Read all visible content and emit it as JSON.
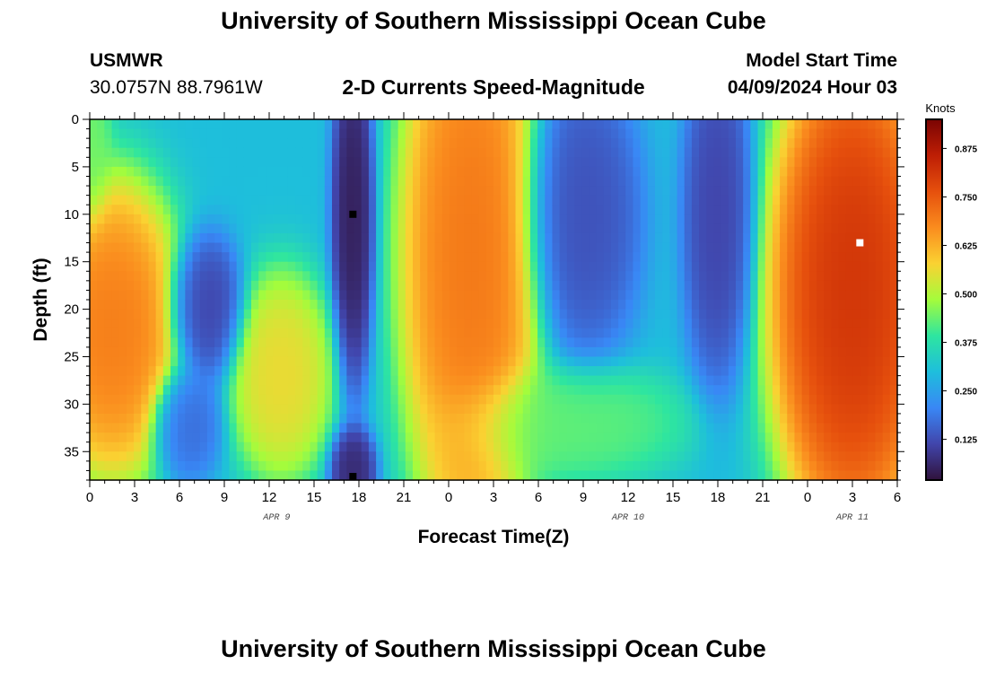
{
  "header": {
    "title": "University of Southern Mississippi Ocean Cube",
    "station_id": "USMWR",
    "station_coords": "30.0757N  88.7961W",
    "subtitle": "2-D Currents Speed-Magnitude",
    "model_start_label": "Model Start Time",
    "model_start_value": "04/09/2024 Hour 03"
  },
  "footer": {
    "title": "University of Southern Mississippi Ocean Cube"
  },
  "chart_data": {
    "type": "heatmap",
    "title": "2-D Currents Speed-Magnitude",
    "xlabel": "Forecast Time(Z)",
    "ylabel": "Depth (ft)",
    "x_unit": "forecast hour from 04/09/2024 00Z",
    "xlim": [
      0,
      54
    ],
    "ylim": [
      0,
      38
    ],
    "y_inverted": true,
    "x_ticks": [
      {
        "hour": 0,
        "label": "0"
      },
      {
        "hour": 3,
        "label": "3"
      },
      {
        "hour": 6,
        "label": "6"
      },
      {
        "hour": 9,
        "label": "9"
      },
      {
        "hour": 12,
        "label": "12"
      },
      {
        "hour": 15,
        "label": "15"
      },
      {
        "hour": 18,
        "label": "18"
      },
      {
        "hour": 21,
        "label": "21"
      },
      {
        "hour": 24,
        "label": "0"
      },
      {
        "hour": 27,
        "label": "3"
      },
      {
        "hour": 30,
        "label": "6"
      },
      {
        "hour": 33,
        "label": "9"
      },
      {
        "hour": 36,
        "label": "12"
      },
      {
        "hour": 39,
        "label": "15"
      },
      {
        "hour": 42,
        "label": "18"
      },
      {
        "hour": 45,
        "label": "21"
      },
      {
        "hour": 48,
        "label": "0"
      },
      {
        "hour": 51,
        "label": "3"
      },
      {
        "hour": 54,
        "label": "6"
      }
    ],
    "date_labels": [
      {
        "hour": 12.5,
        "label": "APR 9"
      },
      {
        "hour": 36,
        "label": "APR 10"
      },
      {
        "hour": 51,
        "label": "APR 11"
      }
    ],
    "y_ticks": [
      0,
      5,
      10,
      15,
      20,
      25,
      30,
      35
    ],
    "colorbar": {
      "label": "Knots",
      "min": 0.02,
      "max": 0.95,
      "ticks": [
        "0.125",
        "0.250",
        "0.375",
        "0.500",
        "0.625",
        "0.750",
        "0.875"
      ],
      "colormap": "turbo"
    },
    "field_features": [
      {
        "time": 1.5,
        "depth": 22,
        "speed": 0.72,
        "sx": 3.0,
        "sy": 10
      },
      {
        "time": 0,
        "depth": 2,
        "speed": 0.45,
        "sx": 0.9,
        "sy": 6
      },
      {
        "time": 7.8,
        "depth": 20,
        "speed": 0.1,
        "sx": 1.6,
        "sy": 5
      },
      {
        "time": 6.5,
        "depth": 32,
        "speed": 0.16,
        "sx": 1.5,
        "sy": 4
      },
      {
        "time": 12.8,
        "depth": 27,
        "speed": 0.58,
        "sx": 2.2,
        "sy": 7
      },
      {
        "time": 17.6,
        "depth": 10,
        "speed": 0.03,
        "sx": 0.9,
        "sy": 12
      },
      {
        "time": 17.6,
        "depth": 37,
        "speed": 0.05,
        "sx": 1.0,
        "sy": 3
      },
      {
        "time": 25.5,
        "depth": 14,
        "speed": 0.73,
        "sx": 3.0,
        "sy": 20
      },
      {
        "time": 32.0,
        "depth": 32,
        "speed": 0.44,
        "sx": 5.0,
        "sy": 4
      },
      {
        "time": 33.0,
        "depth": 10,
        "speed": 0.12,
        "sx": 2.5,
        "sy": 10
      },
      {
        "time": 42.0,
        "depth": 10,
        "speed": 0.1,
        "sx": 1.5,
        "sy": 12
      },
      {
        "time": 51.0,
        "depth": 18,
        "speed": 0.85,
        "sx": 3.5,
        "sy": 17
      }
    ],
    "markers": [
      {
        "time": 17.6,
        "depth": 10,
        "color": "#000000"
      },
      {
        "time": 17.6,
        "depth": 38,
        "color": "#000000"
      },
      {
        "time": 51.5,
        "depth": 13,
        "color": "#ffffff"
      }
    ]
  }
}
